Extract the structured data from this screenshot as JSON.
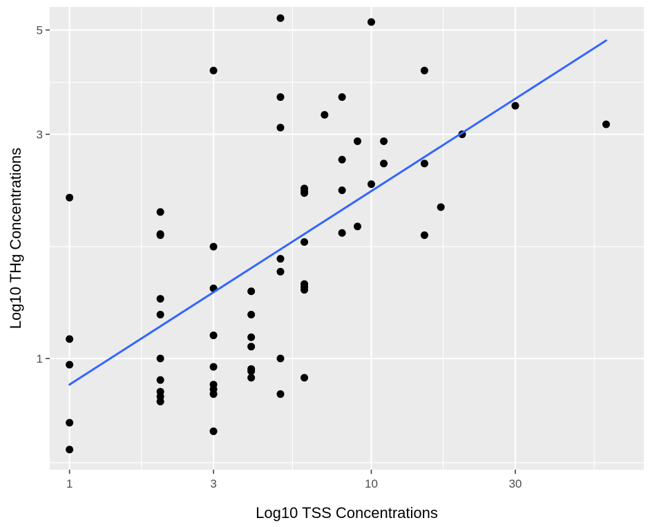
{
  "chart_data": {
    "type": "scatter",
    "title": "",
    "xlabel": "Log10 TSS Concentrations",
    "ylabel": "Log10 THg Concentrations",
    "x_scale": "log10",
    "y_scale": "log10",
    "xlim": [
      0.86,
      80
    ],
    "ylim": [
      0.58,
      5.6
    ],
    "x_ticks": [
      {
        "value": 1,
        "label": "1"
      },
      {
        "value": 3,
        "label": "3"
      },
      {
        "value": 10,
        "label": "10"
      },
      {
        "value": 30,
        "label": "30"
      }
    ],
    "x_minor_ticks": [
      1.73,
      5.48,
      17.3,
      54.8
    ],
    "y_ticks": [
      {
        "value": 1,
        "label": "1"
      },
      {
        "value": 3,
        "label": "3"
      },
      {
        "value": 5,
        "label": "5"
      }
    ],
    "y_minor_ticks": [
      0.6,
      1.73,
      3.87
    ],
    "grid": true,
    "background": "#ebebeb",
    "grid_color": "#ffffff",
    "point_color": "#000000",
    "line_color": "#3366ff",
    "points": [
      {
        "x": 1,
        "y": 2.2
      },
      {
        "x": 1,
        "y": 1.1
      },
      {
        "x": 1,
        "y": 0.97
      },
      {
        "x": 1,
        "y": 0.73
      },
      {
        "x": 1,
        "y": 0.64
      },
      {
        "x": 2,
        "y": 2.05
      },
      {
        "x": 2,
        "y": 1.84
      },
      {
        "x": 2,
        "y": 1.83
      },
      {
        "x": 2,
        "y": 1.34
      },
      {
        "x": 2,
        "y": 1.24
      },
      {
        "x": 2,
        "y": 1.0
      },
      {
        "x": 2,
        "y": 0.9
      },
      {
        "x": 2,
        "y": 0.85
      },
      {
        "x": 2,
        "y": 0.83
      },
      {
        "x": 2,
        "y": 0.81
      },
      {
        "x": 3,
        "y": 4.1
      },
      {
        "x": 3,
        "y": 1.73
      },
      {
        "x": 3,
        "y": 1.41
      },
      {
        "x": 3,
        "y": 1.12
      },
      {
        "x": 3,
        "y": 0.96
      },
      {
        "x": 3,
        "y": 0.88
      },
      {
        "x": 3,
        "y": 0.86
      },
      {
        "x": 3,
        "y": 0.84
      },
      {
        "x": 3,
        "y": 0.7
      },
      {
        "x": 4,
        "y": 1.39
      },
      {
        "x": 4,
        "y": 1.24
      },
      {
        "x": 4,
        "y": 1.11
      },
      {
        "x": 4,
        "y": 1.06
      },
      {
        "x": 4,
        "y": 0.95
      },
      {
        "x": 4,
        "y": 0.94
      },
      {
        "x": 4,
        "y": 0.91
      },
      {
        "x": 5,
        "y": 5.3
      },
      {
        "x": 5,
        "y": 3.6
      },
      {
        "x": 5,
        "y": 3.1
      },
      {
        "x": 5,
        "y": 1.63
      },
      {
        "x": 5,
        "y": 1.53
      },
      {
        "x": 5,
        "y": 1.0
      },
      {
        "x": 5,
        "y": 0.84
      },
      {
        "x": 6,
        "y": 2.3
      },
      {
        "x": 6,
        "y": 2.27
      },
      {
        "x": 6,
        "y": 2.25
      },
      {
        "x": 6,
        "y": 1.77
      },
      {
        "x": 6,
        "y": 1.44
      },
      {
        "x": 6,
        "y": 1.42
      },
      {
        "x": 6,
        "y": 1.4
      },
      {
        "x": 6,
        "y": 0.91
      },
      {
        "x": 7,
        "y": 3.3
      },
      {
        "x": 8,
        "y": 3.6
      },
      {
        "x": 8,
        "y": 2.65
      },
      {
        "x": 8,
        "y": 2.28
      },
      {
        "x": 8,
        "y": 1.85
      },
      {
        "x": 9,
        "y": 2.9
      },
      {
        "x": 9,
        "y": 1.91
      },
      {
        "x": 10,
        "y": 5.2
      },
      {
        "x": 10,
        "y": 2.35
      },
      {
        "x": 11,
        "y": 2.9
      },
      {
        "x": 11,
        "y": 2.6
      },
      {
        "x": 15,
        "y": 4.1
      },
      {
        "x": 15,
        "y": 2.6
      },
      {
        "x": 15,
        "y": 1.83
      },
      {
        "x": 17,
        "y": 2.1
      },
      {
        "x": 20,
        "y": 3.0
      },
      {
        "x": 30,
        "y": 3.45
      },
      {
        "x": 60,
        "y": 3.15
      }
    ],
    "trend_line": [
      {
        "x": 1,
        "y": 0.88
      },
      {
        "x": 60,
        "y": 4.75
      }
    ]
  }
}
